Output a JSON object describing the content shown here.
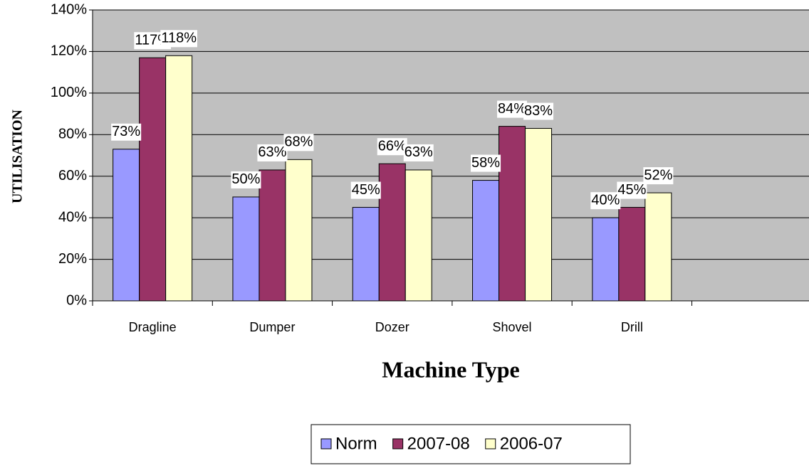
{
  "chart_data": {
    "type": "bar",
    "x_label": "Machine Type",
    "y_label": "UTILISATION",
    "categories": [
      "Dragline",
      "Dumper",
      "Dozer",
      "Shovel",
      "Drill",
      null
    ],
    "series": [
      {
        "name": "Norm",
        "color": "#9999ff",
        "values": [
          73,
          50,
          45,
          58,
          40,
          null
        ],
        "value_labels": [
          "73%",
          "50%",
          "45%",
          "58%",
          "40%",
          null
        ]
      },
      {
        "name": "2007-08",
        "color": "#993366",
        "values": [
          117,
          63,
          66,
          84,
          45,
          null
        ],
        "value_labels": [
          "117%",
          "63%",
          "66%",
          "84%",
          "45%",
          null
        ]
      },
      {
        "name": "2006-07",
        "color": "#ffffcc",
        "values": [
          118,
          68,
          63,
          83,
          52,
          null
        ],
        "value_labels": [
          "118%",
          "68%",
          "63%",
          "83%",
          "52%",
          null
        ]
      }
    ],
    "ylim": [
      0,
      140
    ],
    "yticks": [
      {
        "value": 0,
        "label": "0%"
      },
      {
        "value": 20,
        "label": "20%"
      },
      {
        "value": 40,
        "label": "40%"
      },
      {
        "value": 60,
        "label": "60%"
      },
      {
        "value": 80,
        "label": "80%"
      },
      {
        "value": 100,
        "label": "100%"
      },
      {
        "value": 120,
        "label": "120%"
      },
      {
        "value": 140,
        "label": "140%"
      }
    ],
    "grid": true,
    "legend": "bottom"
  }
}
